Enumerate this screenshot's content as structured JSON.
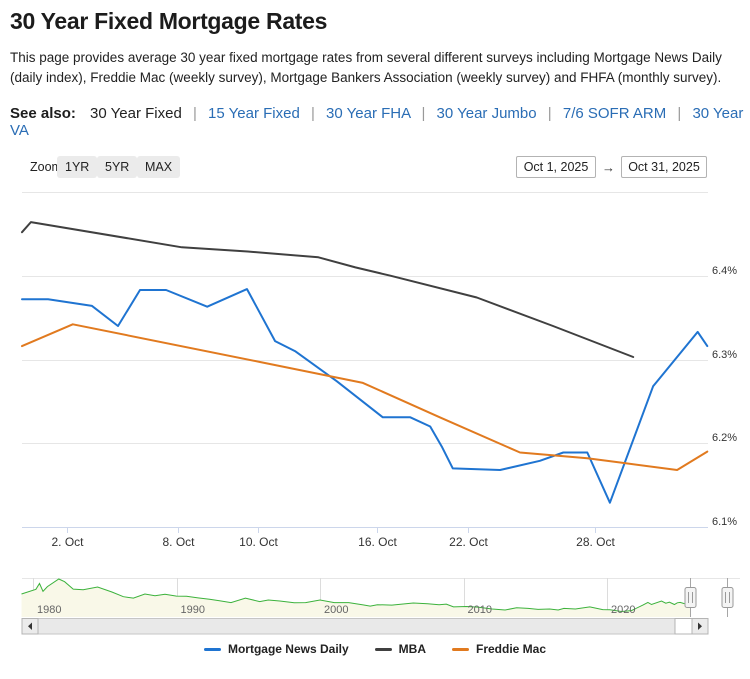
{
  "page": {
    "title": "30 Year Fixed Mortgage Rates",
    "description": "This page provides average 30 year fixed mortgage rates from several different surveys including Mortgage News Daily (daily index), Freddie Mac (weekly survey), Mortgage Bankers Association (weekly survey) and FHFA (monthly survey)."
  },
  "see_also": {
    "label": "See also:",
    "separator": "|",
    "links": [
      {
        "label": "30 Year Fixed",
        "current": true
      },
      {
        "label": "15 Year Fixed",
        "current": false
      },
      {
        "label": "30 Year FHA",
        "current": false
      },
      {
        "label": "30 Year Jumbo",
        "current": false
      },
      {
        "label": "7/6 SOFR ARM",
        "current": false
      },
      {
        "label": "30 Year VA",
        "current": false
      }
    ]
  },
  "controls": {
    "zoom_label": "Zoom",
    "buttons": {
      "b1": "1YR",
      "b2": "5YR",
      "b3": "MAX"
    },
    "date_from": "Oct 1, 2025",
    "date_to": "Oct 31, 2025",
    "arrow": "→"
  },
  "chart_data": {
    "type": "line",
    "title": "30 Year Fixed Mortgage Rates - October 2025",
    "y_axis": {
      "unit": "%",
      "min": 6.1,
      "max": 6.5,
      "ticks": [
        {
          "value": 6.5,
          "label": ""
        },
        {
          "value": 6.4,
          "label": "6.4%"
        },
        {
          "value": 6.3,
          "label": "6.3%"
        },
        {
          "value": 6.2,
          "label": "6.2%"
        },
        {
          "value": 6.1,
          "label": "6.1%"
        }
      ]
    },
    "x_axis": {
      "range_from": "Oct 1, 2025",
      "range_to": "Oct 31, 2025",
      "ticks": [
        {
          "pos": 0.066,
          "label": "2. Oct"
        },
        {
          "pos": 0.227,
          "label": "8. Oct"
        },
        {
          "pos": 0.344,
          "label": "10. Oct"
        },
        {
          "pos": 0.518,
          "label": "16. Oct"
        },
        {
          "pos": 0.65,
          "label": "22. Oct"
        },
        {
          "pos": 0.835,
          "label": "28. Oct"
        }
      ]
    },
    "series": [
      {
        "name": "Mortgage News Daily",
        "color": "#1f74d1",
        "points": [
          [
            0.0,
            6.372
          ],
          [
            0.038,
            6.372
          ],
          [
            0.102,
            6.364
          ],
          [
            0.14,
            6.34
          ],
          [
            0.172,
            6.383
          ],
          [
            0.21,
            6.383
          ],
          [
            0.27,
            6.363
          ],
          [
            0.328,
            6.384
          ],
          [
            0.369,
            6.322
          ],
          [
            0.398,
            6.31
          ],
          [
            0.459,
            6.274
          ],
          [
            0.526,
            6.231
          ],
          [
            0.566,
            6.231
          ],
          [
            0.595,
            6.22
          ],
          [
            0.612,
            6.196
          ],
          [
            0.628,
            6.17
          ],
          [
            0.697,
            6.168
          ],
          [
            0.755,
            6.179
          ],
          [
            0.789,
            6.189
          ],
          [
            0.824,
            6.189
          ],
          [
            0.857,
            6.129
          ],
          [
            0.92,
            6.268
          ],
          [
            0.985,
            6.333
          ],
          [
            0.999,
            6.316
          ]
        ]
      },
      {
        "name": "MBA",
        "color": "#404040",
        "points": [
          [
            0.0,
            6.452
          ],
          [
            0.013,
            6.464
          ],
          [
            0.233,
            6.434
          ],
          [
            0.329,
            6.429
          ],
          [
            0.432,
            6.422
          ],
          [
            0.486,
            6.41
          ],
          [
            0.537,
            6.4
          ],
          [
            0.663,
            6.374
          ],
          [
            0.774,
            6.34
          ],
          [
            0.891,
            6.303
          ]
        ]
      },
      {
        "name": "Freddie Mac",
        "color": "#e17a1f",
        "points": [
          [
            0.0,
            6.316
          ],
          [
            0.074,
            6.342
          ],
          [
            0.347,
            6.297
          ],
          [
            0.497,
            6.272
          ],
          [
            0.609,
            6.231
          ],
          [
            0.726,
            6.189
          ],
          [
            0.824,
            6.182
          ],
          [
            0.872,
            6.177
          ],
          [
            0.955,
            6.168
          ],
          [
            0.999,
            6.19
          ]
        ]
      }
    ],
    "navigator": {
      "decades": [
        {
          "year": 1980,
          "label": "1980"
        },
        {
          "year": 1990,
          "label": "1990"
        },
        {
          "year": 2000,
          "label": "2000"
        },
        {
          "year": 2010,
          "label": "2010"
        },
        {
          "year": 2020,
          "label": "2020"
        }
      ],
      "line_color": "#3cb23c",
      "fill_color": "#f9f8e8",
      "value_max": 19,
      "selection_from_frac": 0.948,
      "selection_to_frac": 1.0,
      "points": [
        [
          1979.2,
          11.2
        ],
        [
          1980.2,
          13.5
        ],
        [
          1980.45,
          16.3
        ],
        [
          1980.7,
          12.5
        ],
        [
          1981.0,
          14.8
        ],
        [
          1981.8,
          18.5
        ],
        [
          1982.2,
          17.2
        ],
        [
          1982.8,
          13.6
        ],
        [
          1983.5,
          13.3
        ],
        [
          1984.5,
          14.6
        ],
        [
          1985.5,
          12.2
        ],
        [
          1986.3,
          9.9
        ],
        [
          1987.0,
          9.2
        ],
        [
          1987.8,
          11.2
        ],
        [
          1988.5,
          10.4
        ],
        [
          1989.2,
          11.1
        ],
        [
          1990.0,
          10.2
        ],
        [
          1990.7,
          10.1
        ],
        [
          1991.5,
          9.3
        ],
        [
          1992.3,
          8.6
        ],
        [
          1993.0,
          7.9
        ],
        [
          1993.8,
          7.0
        ],
        [
          1994.8,
          9.2
        ],
        [
          1995.8,
          7.5
        ],
        [
          1996.4,
          8.3
        ],
        [
          1997.2,
          7.8
        ],
        [
          1998.2,
          6.9
        ],
        [
          1999.0,
          7.0
        ],
        [
          2000.0,
          8.3
        ],
        [
          2001.0,
          7.0
        ],
        [
          2002.0,
          7.0
        ],
        [
          2003.0,
          5.9
        ],
        [
          2003.5,
          5.3
        ],
        [
          2004.0,
          6.0
        ],
        [
          2005.0,
          5.8
        ],
        [
          2006.5,
          6.8
        ],
        [
          2007.5,
          6.5
        ],
        [
          2008.3,
          6.0
        ],
        [
          2008.8,
          6.3
        ],
        [
          2009.3,
          4.9
        ],
        [
          2010.2,
          5.1
        ],
        [
          2011.0,
          4.8
        ],
        [
          2012.0,
          3.9
        ],
        [
          2012.9,
          3.4
        ],
        [
          2013.7,
          4.5
        ],
        [
          2014.5,
          4.2
        ],
        [
          2015.2,
          3.7
        ],
        [
          2016.0,
          3.9
        ],
        [
          2016.6,
          3.4
        ],
        [
          2017.0,
          4.2
        ],
        [
          2017.8,
          3.9
        ],
        [
          2018.8,
          4.9
        ],
        [
          2019.7,
          3.6
        ],
        [
          2020.2,
          3.5
        ],
        [
          2021.0,
          2.7
        ],
        [
          2021.7,
          3.1
        ],
        [
          2022.5,
          5.8
        ],
        [
          2022.85,
          7.1
        ],
        [
          2023.1,
          6.1
        ],
        [
          2023.8,
          7.8
        ],
        [
          2024.1,
          6.7
        ],
        [
          2024.35,
          7.2
        ],
        [
          2024.7,
          6.1
        ],
        [
          2024.9,
          6.9
        ],
        [
          2025.1,
          7.1
        ],
        [
          2025.35,
          6.6
        ],
        [
          2025.55,
          6.5
        ],
        [
          2025.75,
          6.2
        ],
        [
          2025.85,
          6.3
        ]
      ]
    }
  },
  "legend": {
    "items": [
      {
        "label": "Mortgage News Daily",
        "color": "#1f74d1"
      },
      {
        "label": "MBA",
        "color": "#404040"
      },
      {
        "label": "Freddie Mac",
        "color": "#e17a1f"
      }
    ]
  },
  "colors": {
    "gridline": "#e6e6e6",
    "axis": "#ccd6eb",
    "axis_label": "#333333",
    "nav_gridline": "#dcdcdc",
    "nav_label": "#666666",
    "link": "#2a6db5"
  }
}
